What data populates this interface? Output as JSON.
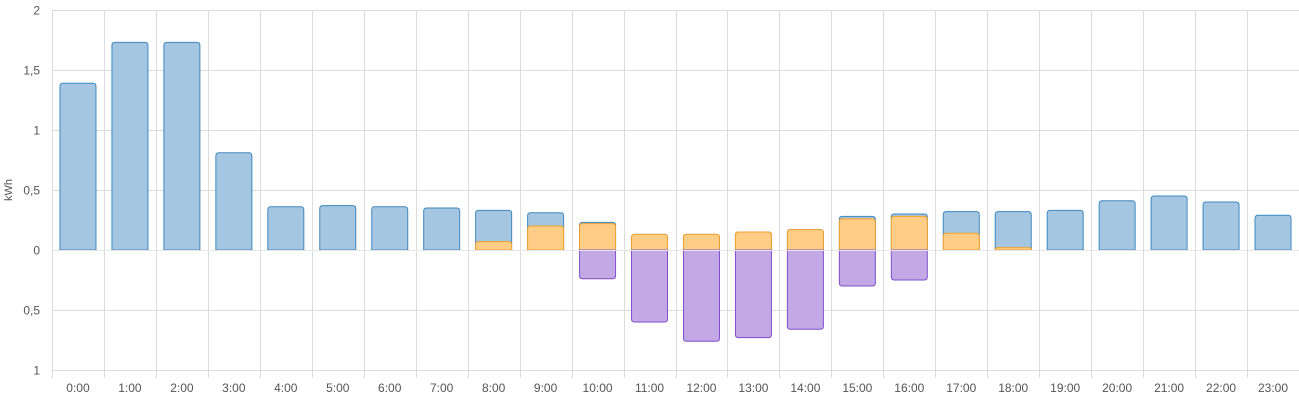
{
  "chart_data": {
    "type": "bar",
    "ylabel": "kWh",
    "ylim": [
      -1,
      2
    ],
    "y_tick_values": [
      2,
      1.5,
      1,
      0.5,
      0,
      -0.5,
      -1
    ],
    "y_tick_labels": [
      "2",
      "1,5",
      "1",
      "0,5",
      "0",
      "0,5",
      "1"
    ],
    "grid": true,
    "categories": [
      "0:00",
      "1:00",
      "2:00",
      "3:00",
      "4:00",
      "5:00",
      "6:00",
      "7:00",
      "8:00",
      "9:00",
      "10:00",
      "11:00",
      "12:00",
      "13:00",
      "14:00",
      "15:00",
      "16:00",
      "17:00",
      "18:00",
      "19:00",
      "20:00",
      "21:00",
      "22:00",
      "23:00"
    ],
    "series": [
      {
        "key": "consumption",
        "color": "#a4c6e0",
        "stroke": "#3f88bf",
        "values": [
          1.39,
          1.73,
          1.73,
          0.81,
          0.36,
          0.37,
          0.36,
          0.35,
          0.33,
          0.31,
          0.23,
          0.13,
          0.13,
          0.15,
          0.17,
          0.28,
          0.3,
          0.32,
          0.32,
          0.33,
          0.41,
          0.45,
          0.4,
          0.29
        ]
      },
      {
        "key": "solar",
        "color": "#ffcd85",
        "stroke": "#f2a12b",
        "values": [
          0,
          0,
          0,
          0,
          0,
          0,
          0,
          0,
          0.07,
          0.2,
          0.22,
          0.13,
          0.13,
          0.15,
          0.17,
          0.26,
          0.28,
          0.14,
          0.02,
          0,
          0,
          0,
          0,
          0
        ]
      },
      {
        "key": "return",
        "color": "#c2a9e6",
        "stroke": "#7e4fce",
        "values": [
          0,
          0,
          0,
          0,
          0,
          0,
          0,
          0,
          0,
          0,
          -0.24,
          -0.6,
          -0.76,
          -0.73,
          -0.66,
          -0.3,
          -0.25,
          0,
          0,
          0,
          0,
          0,
          0,
          0
        ]
      }
    ]
  }
}
